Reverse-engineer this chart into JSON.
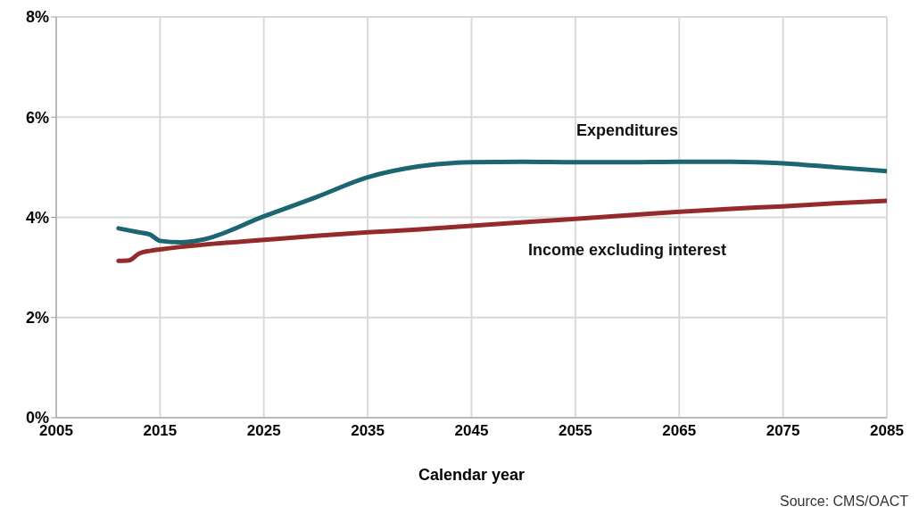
{
  "chart_data": {
    "type": "line",
    "xlabel": "Calendar year",
    "annotations": [
      "Source: CMS/OACT"
    ],
    "x": [
      2011,
      2012,
      2013,
      2014,
      2015,
      2017,
      2019,
      2025,
      2030,
      2035,
      2040,
      2045,
      2050,
      2055,
      2060,
      2065,
      2070,
      2075,
      2080,
      2085
    ],
    "series": [
      {
        "name": "Expenditures",
        "color": "#1b6672",
        "values": [
          3.78,
          3.74,
          3.7,
          3.66,
          3.53,
          3.5,
          3.55,
          4.02,
          4.4,
          4.8,
          5.02,
          5.1,
          5.11,
          5.1,
          5.1,
          5.11,
          5.11,
          5.08,
          5.0,
          4.92
        ]
      },
      {
        "name": "Income excluding interest",
        "color": "#952a2a",
        "values": [
          3.13,
          3.14,
          3.28,
          3.33,
          3.36,
          3.41,
          3.45,
          3.55,
          3.63,
          3.7,
          3.76,
          3.83,
          3.9,
          3.97,
          4.04,
          4.11,
          4.17,
          4.22,
          4.28,
          4.33
        ]
      }
    ],
    "xlim": [
      2005,
      2085
    ],
    "xticks": [
      2005,
      2015,
      2025,
      2035,
      2045,
      2055,
      2065,
      2075,
      2085
    ],
    "ylim": [
      0,
      8
    ],
    "yticks": [
      {
        "value": 0,
        "label": "0%"
      },
      {
        "value": 2,
        "label": "2%"
      },
      {
        "value": 4,
        "label": "4%"
      },
      {
        "value": 6,
        "label": "6%"
      },
      {
        "value": 8,
        "label": "8%"
      }
    ],
    "grid": true,
    "marker": "none",
    "line_style": "solid",
    "legend": false
  }
}
